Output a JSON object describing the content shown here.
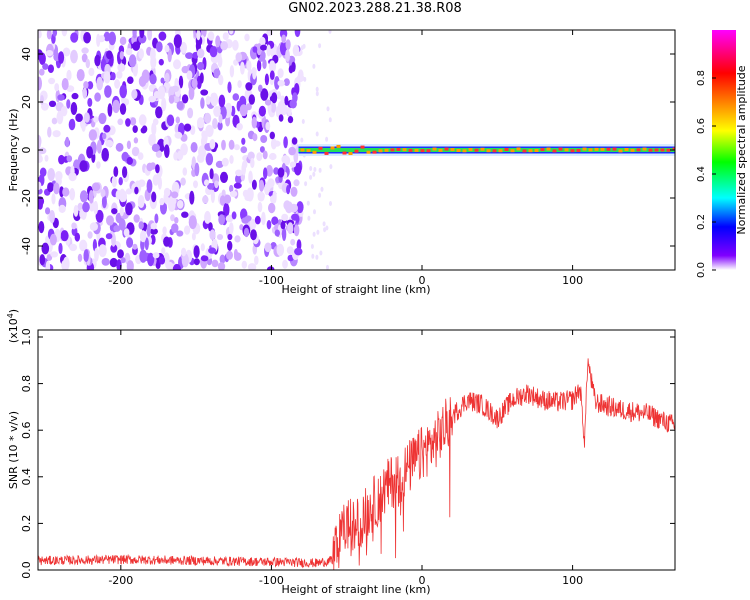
{
  "title": "GN02.2023.288.21.38.R08",
  "chart_data": [
    {
      "type": "heatmap",
      "xlabel": "Height of straight line (km)",
      "ylabel": "Frequency (Hz)",
      "xlim": [
        -255,
        168
      ],
      "ylim": [
        -50,
        50
      ],
      "xticks": [
        -200,
        -100,
        0,
        100
      ],
      "yticks": [
        -40,
        -20,
        0,
        20,
        40
      ],
      "colorbar": {
        "label": "Normalized spectral amplitude",
        "range": [
          0,
          1
        ],
        "ticks": [
          "0.0",
          "0.2",
          "0.4",
          "0.6",
          "0.8"
        ],
        "colors": [
          "#ffffff",
          "#8000ff",
          "#0000ff",
          "#00ffff",
          "#00ff00",
          "#ffff00",
          "#ff8000",
          "#ff0000",
          "#ff00ff"
        ]
      },
      "noise_region": {
        "x_from": -255,
        "x_to": -80,
        "level": 0.1
      },
      "signal_line": {
        "x_from": -82,
        "x_to": 168,
        "frequency": 0,
        "peak": 0.9
      }
    },
    {
      "type": "line",
      "xlabel": "Height of straight line (km)",
      "ylabel": "SNR (10 * v/v)",
      "yscale_label": "(x10",
      "yscale_exp": "4",
      "yscale_close": ")",
      "xlim": [
        -255,
        168
      ],
      "ylim": [
        0,
        1.03
      ],
      "xticks": [
        -200,
        -100,
        0,
        100
      ],
      "yticks": [
        0.0,
        0.2,
        0.4,
        0.6,
        0.8,
        1.0
      ],
      "color": "#ee3333",
      "series": [
        {
          "x": [
            -255,
            -200,
            -150,
            -100,
            -70,
            -60,
            -55,
            -50,
            -45,
            -40,
            -30,
            -20,
            -10,
            0,
            10,
            20,
            30,
            40,
            50,
            60,
            70,
            80,
            90,
            100,
            105,
            108,
            110,
            115,
            120,
            130,
            140,
            150,
            160,
            168
          ],
          "values": [
            0.04,
            0.045,
            0.04,
            0.035,
            0.03,
            0.04,
            0.12,
            0.2,
            0.18,
            0.22,
            0.3,
            0.38,
            0.43,
            0.5,
            0.56,
            0.66,
            0.73,
            0.71,
            0.65,
            0.73,
            0.76,
            0.73,
            0.72,
            0.73,
            0.78,
            0.55,
            0.9,
            0.72,
            0.71,
            0.69,
            0.68,
            0.67,
            0.64,
            0.62
          ]
        }
      ]
    }
  ]
}
